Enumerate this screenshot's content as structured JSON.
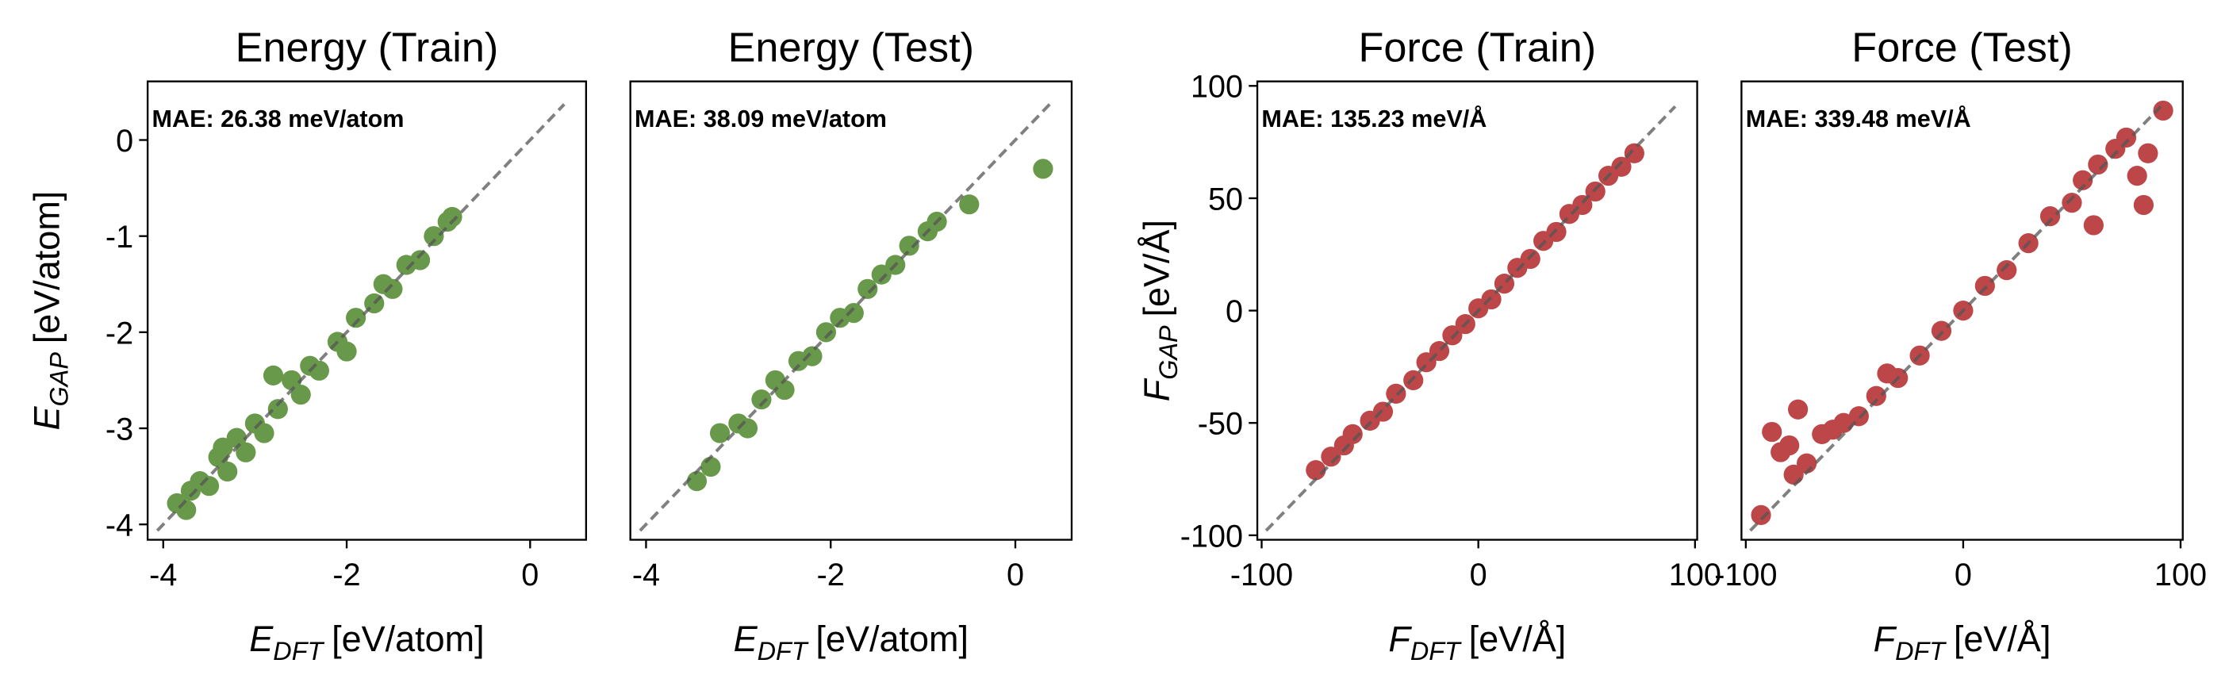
{
  "chart_data": [
    {
      "type": "scatter",
      "title": "Energy (Train)",
      "annotation": "MAE: 26.38 meV/atom",
      "color": "#68994a",
      "identity_line": true,
      "xlabel": {
        "symbol": "E",
        "subscript": "DFT",
        "unit": "[eV/atom]"
      },
      "ylabel": {
        "symbol": "E",
        "subscript": "GAP",
        "unit": "[eV/atom]"
      },
      "xlim": [
        -4.17,
        0.61
      ],
      "ylim": [
        -4.16,
        0.61
      ],
      "xticks": [
        -4,
        -2,
        0
      ],
      "yticks": [
        -4,
        -3,
        -2,
        -1,
        0
      ],
      "x": [
        -3.85,
        -3.75,
        -3.7,
        -3.6,
        -3.5,
        -3.4,
        -3.35,
        -3.3,
        -3.2,
        -3.1,
        -3.0,
        -2.9,
        -2.8,
        -2.75,
        -2.6,
        -2.5,
        -2.4,
        -2.3,
        -2.1,
        -2.0,
        -1.9,
        -1.7,
        -1.6,
        -1.5,
        -1.35,
        -1.2,
        -1.05,
        -0.9,
        -0.85
      ],
      "values": [
        -3.78,
        -3.85,
        -3.65,
        -3.55,
        -3.6,
        -3.3,
        -3.2,
        -3.45,
        -3.1,
        -3.25,
        -2.95,
        -3.05,
        -2.45,
        -2.8,
        -2.5,
        -2.65,
        -2.35,
        -2.4,
        -2.1,
        -2.2,
        -1.85,
        -1.7,
        -1.5,
        -1.55,
        -1.3,
        -1.25,
        -1.0,
        -0.85,
        -0.8
      ]
    },
    {
      "type": "scatter",
      "title": "Energy (Test)",
      "annotation": "MAE: 38.09 meV/atom",
      "color": "#68994a",
      "identity_line": true,
      "xlabel": {
        "symbol": "E",
        "subscript": "DFT",
        "unit": "[eV/atom]"
      },
      "xlim": [
        -4.17,
        0.61
      ],
      "ylim": [
        -4.16,
        0.61
      ],
      "xticks": [
        -4,
        -2,
        0
      ],
      "x": [
        -3.45,
        -3.3,
        -3.2,
        -3.0,
        -2.9,
        -2.75,
        -2.6,
        -2.5,
        -2.35,
        -2.2,
        -2.05,
        -1.9,
        -1.75,
        -1.6,
        -1.45,
        -1.3,
        -1.15,
        -0.95,
        -0.85,
        -0.5,
        0.3
      ],
      "values": [
        -3.55,
        -3.4,
        -3.05,
        -2.95,
        -3.0,
        -2.7,
        -2.5,
        -2.6,
        -2.3,
        -2.25,
        -2.0,
        -1.85,
        -1.8,
        -1.55,
        -1.4,
        -1.3,
        -1.1,
        -0.95,
        -0.85,
        -0.67,
        -0.3
      ]
    },
    {
      "type": "scatter",
      "title": "Force (Train)",
      "annotation": "MAE: 135.23 meV/Å",
      "color": "#bc4648",
      "identity_line": true,
      "xlabel": {
        "symbol": "F",
        "subscript": "DFT",
        "unit": "[eV/Å]"
      },
      "ylabel": {
        "symbol": "F",
        "subscript": "GAP",
        "unit": "[eV/Å]"
      },
      "xlim": [
        -102,
        101
      ],
      "ylim": [
        -102,
        102
      ],
      "xticks": [
        -100,
        0,
        100
      ],
      "yticks": [
        -100,
        -50,
        0,
        50,
        100
      ],
      "x": [
        -75,
        -68,
        -62,
        -58,
        -50,
        -44,
        -38,
        -30,
        -24,
        -18,
        -12,
        -6,
        0,
        6,
        12,
        18,
        24,
        30,
        36,
        42,
        48,
        54,
        60,
        66,
        72
      ],
      "values": [
        -71,
        -65,
        -60,
        -55,
        -49,
        -45,
        -37,
        -31,
        -23,
        -18,
        -11,
        -6,
        1,
        5,
        12,
        19,
        23,
        31,
        35,
        43,
        47,
        53,
        60,
        64,
        70
      ]
    },
    {
      "type": "scatter",
      "title": "Force (Test)",
      "annotation": "MAE: 339.48 meV/Å",
      "color": "#bc4648",
      "identity_line": true,
      "xlabel": {
        "symbol": "F",
        "subscript": "DFT",
        "unit": "[eV/Å]"
      },
      "xlim": [
        -102,
        101
      ],
      "ylim": [
        -102,
        102
      ],
      "xticks": [
        -100,
        0,
        100
      ],
      "x": [
        -93,
        -88,
        -84,
        -78,
        -76,
        -80,
        -72,
        -65,
        -60,
        -55,
        -48,
        -40,
        -35,
        -30,
        -20,
        -10,
        0,
        10,
        20,
        30,
        40,
        50,
        55,
        60,
        62,
        70,
        75,
        80,
        83,
        85,
        92
      ],
      "values": [
        -91,
        -54,
        -63,
        -73,
        -44,
        -60,
        -68,
        -55,
        -53,
        -50,
        -47,
        -38,
        -28,
        -30,
        -20,
        -9,
        0,
        11,
        18,
        30,
        42,
        48,
        58,
        38,
        65,
        72,
        77,
        60,
        47,
        70,
        89
      ]
    }
  ]
}
